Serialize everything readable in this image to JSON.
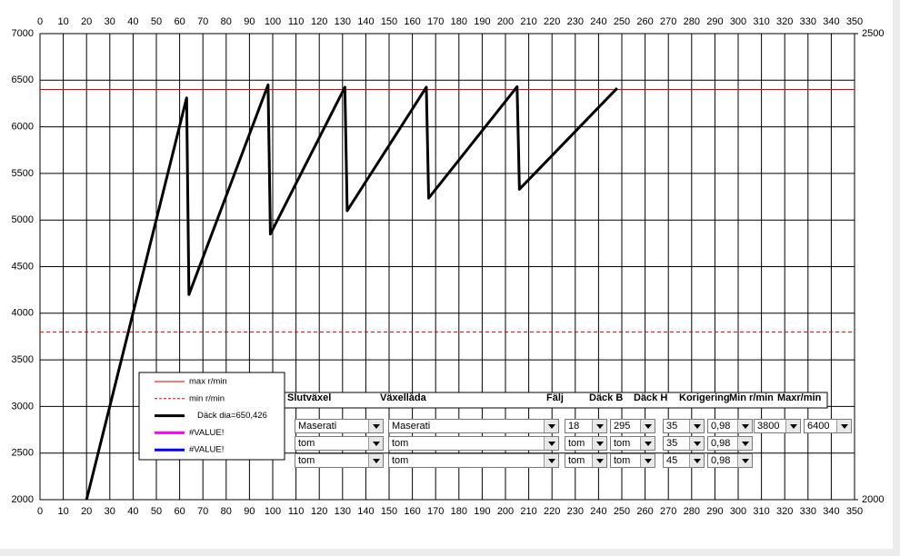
{
  "chart_data": {
    "type": "line",
    "x": [
      20,
      63,
      64,
      98,
      99,
      131,
      132,
      166,
      167,
      205,
      206,
      248
    ],
    "series": [
      {
        "name": "Däck dia=650,426",
        "color": "#000000",
        "values": [
          2000,
          6310,
          4200,
          6450,
          4850,
          6425,
          5100,
          6425,
          5235,
          6430,
          5330,
          6415
        ]
      },
      {
        "name": "#VALUE!",
        "color": "#ff00ff",
        "values": [
          null,
          null,
          null,
          null,
          null,
          null,
          null,
          null,
          null,
          null,
          null,
          null
        ]
      },
      {
        "name": "#VALUE!",
        "color": "#0000ff",
        "values": [
          null,
          null,
          null,
          null,
          null,
          null,
          null,
          null,
          null,
          null,
          null,
          null
        ]
      }
    ],
    "hlines": [
      {
        "name": "max r/min",
        "value": 6400,
        "color": "#e00000",
        "dashed": false
      },
      {
        "name": "min r/min",
        "value": 3800,
        "color": "#e00000",
        "dashed": true
      }
    ],
    "xlim": [
      0,
      350
    ],
    "xticks": [
      0,
      10,
      20,
      30,
      40,
      50,
      60,
      70,
      80,
      90,
      100,
      110,
      120,
      130,
      140,
      150,
      160,
      170,
      180,
      190,
      200,
      210,
      220,
      230,
      240,
      250,
      260,
      270,
      280,
      290,
      300,
      310,
      320,
      330,
      340,
      350
    ],
    "ylim": [
      2000,
      7000
    ],
    "yticks": [
      2000,
      2500,
      3000,
      3500,
      4000,
      4500,
      5000,
      5500,
      6000,
      6500,
      7000
    ],
    "y2lim": [
      2000,
      2500
    ],
    "y2ticks": [
      2000,
      2500
    ],
    "grid": true
  },
  "form": {
    "headers": [
      "Slutväxel",
      "Växellåda",
      "Fälj",
      "Däck B",
      "Däck H",
      "Korigering",
      "Min r/min",
      "Maxr/min"
    ],
    "rows": [
      [
        "Maserati",
        "Maserati",
        "18",
        "295",
        "35",
        "0,98",
        "3800",
        "6400"
      ],
      [
        "tom",
        "tom",
        "tom",
        "tom",
        "35",
        "0,98"
      ],
      [
        "tom",
        "tom",
        "tom",
        "tom",
        "45",
        "0,98"
      ]
    ]
  }
}
